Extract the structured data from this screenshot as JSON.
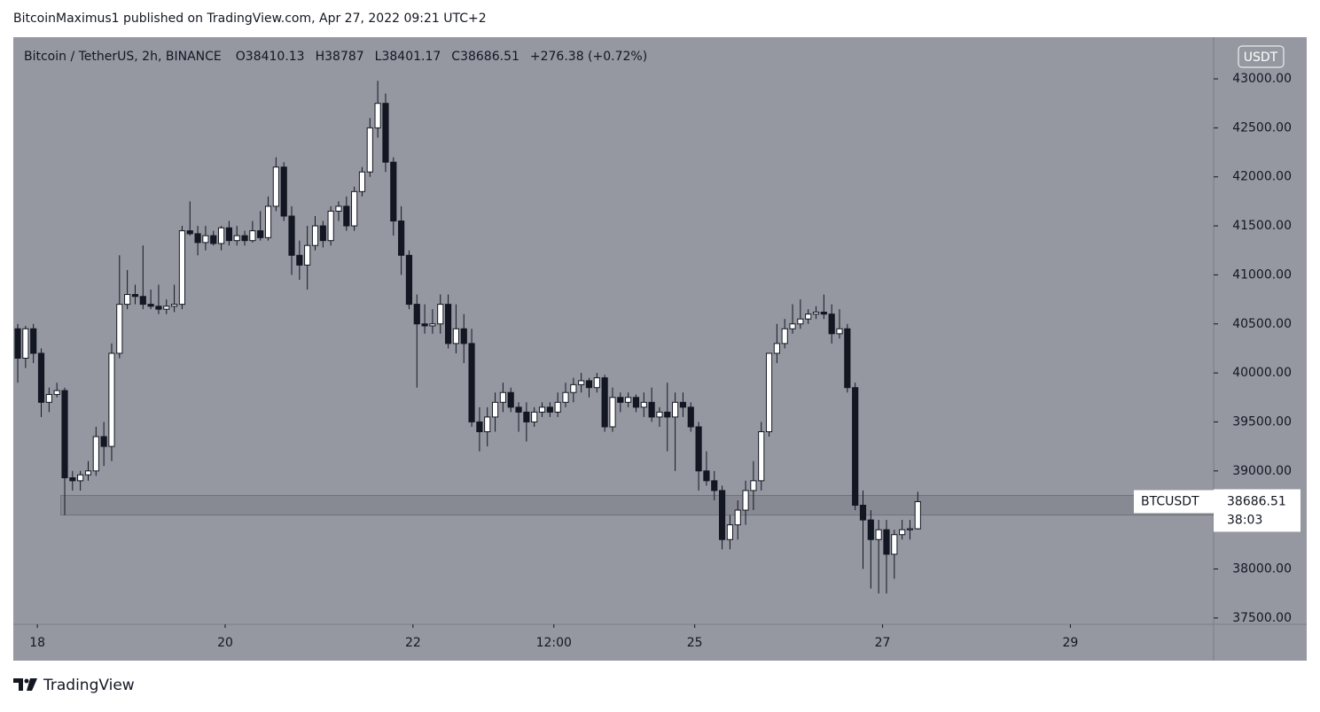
{
  "header": {
    "text": "BitcoinMaximus1 published on TradingView.com, Apr 27, 2022 09:21 UTC+2"
  },
  "footer": {
    "brand": "TradingView"
  },
  "chart_data": {
    "type": "candlestick",
    "title": "Bitcoin / TetherUS, 2h, BINANCE",
    "ohlc_labels": [
      "O",
      "H",
      "L",
      "C"
    ],
    "change_label": "+276.38 (+0.72%)",
    "currency": "USDT",
    "symbol": "BTCUSDT",
    "countdown": "38:03",
    "last_price_label": "38686.51",
    "bull_color": "#ffffff",
    "bear_color": "#131722",
    "background": "#9598a1",
    "zone": {
      "from": 38550,
      "to": 38750,
      "x_from": 5.5,
      "color": "#7d8089"
    },
    "xlim": [
      -0.57,
      152.8
    ],
    "xticks": [
      {
        "value": 2.5,
        "label": "18"
      },
      {
        "value": 26.5,
        "label": "20"
      },
      {
        "value": 50.5,
        "label": "22"
      },
      {
        "value": 68.5,
        "label": "12:00"
      },
      {
        "value": 86.5,
        "label": "25"
      },
      {
        "value": 110.5,
        "label": "27"
      },
      {
        "value": 134.5,
        "label": "29"
      }
    ],
    "ylim": [
      37435,
      43425
    ],
    "yticks": [
      {
        "value": 37500,
        "label": "37500.00"
      },
      {
        "value": 38000,
        "label": "38000.00"
      },
      {
        "value": 38500,
        "label": "38500.00"
      },
      {
        "value": 39000,
        "label": "39000.00"
      },
      {
        "value": 39500,
        "label": "39500.00"
      },
      {
        "value": 40000,
        "label": "40000.00"
      },
      {
        "value": 40500,
        "label": "40500.00"
      },
      {
        "value": 41000,
        "label": "41000.00"
      },
      {
        "value": 41500,
        "label": "41500.00"
      },
      {
        "value": 42000,
        "label": "42000.00"
      },
      {
        "value": 42500,
        "label": "42500.00"
      },
      {
        "value": 43000,
        "label": "43000.00"
      }
    ],
    "ohlc": [
      [
        40450,
        40500,
        39900,
        40150
      ],
      [
        40150,
        40480,
        40050,
        40450
      ],
      [
        40450,
        40500,
        40100,
        40200
      ],
      [
        40200,
        40250,
        39550,
        39700
      ],
      [
        39700,
        39850,
        39600,
        39780
      ],
      [
        39780,
        39900,
        39750,
        39820
      ],
      [
        39820,
        39850,
        38550,
        38930
      ],
      [
        38930,
        39000,
        38800,
        38900
      ],
      [
        38900,
        39000,
        38800,
        38960
      ],
      [
        38960,
        39100,
        38900,
        39000
      ],
      [
        39000,
        39450,
        38950,
        39350
      ],
      [
        39350,
        39500,
        39050,
        39250
      ],
      [
        39250,
        40300,
        39100,
        40200
      ],
      [
        40200,
        41200,
        40150,
        40700
      ],
      [
        40700,
        41050,
        40650,
        40800
      ],
      [
        40800,
        40900,
        40700,
        40780
      ],
      [
        40780,
        41300,
        40650,
        40700
      ],
      [
        40700,
        40850,
        40650,
        40680
      ],
      [
        40680,
        40900,
        40600,
        40650
      ],
      [
        40650,
        40750,
        40600,
        40680
      ],
      [
        40680,
        40900,
        40620,
        40700
      ],
      [
        40700,
        41500,
        40650,
        41450
      ],
      [
        41450,
        41750,
        41400,
        41420
      ],
      [
        41420,
        41500,
        41200,
        41330
      ],
      [
        41330,
        41500,
        41250,
        41400
      ],
      [
        41400,
        41450,
        41300,
        41320
      ],
      [
        41320,
        41500,
        41250,
        41480
      ],
      [
        41480,
        41550,
        41300,
        41350
      ],
      [
        41350,
        41500,
        41300,
        41400
      ],
      [
        41400,
        41450,
        41300,
        41350
      ],
      [
        41350,
        41550,
        41330,
        41450
      ],
      [
        41450,
        41650,
        41350,
        41380
      ],
      [
        41380,
        41800,
        41350,
        41700
      ],
      [
        41700,
        42200,
        41650,
        42100
      ],
      [
        42100,
        42150,
        41550,
        41600
      ],
      [
        41600,
        41700,
        41000,
        41200
      ],
      [
        41200,
        41350,
        40950,
        41100
      ],
      [
        41100,
        41500,
        40850,
        41300
      ],
      [
        41300,
        41600,
        41250,
        41500
      ],
      [
        41500,
        41550,
        41280,
        41350
      ],
      [
        41350,
        41700,
        41300,
        41650
      ],
      [
        41650,
        41750,
        41550,
        41700
      ],
      [
        41700,
        41800,
        41450,
        41500
      ],
      [
        41500,
        41900,
        41450,
        41850
      ],
      [
        41850,
        42100,
        41800,
        42050
      ],
      [
        42050,
        42600,
        42000,
        42500
      ],
      [
        42500,
        42980,
        42400,
        42750
      ],
      [
        42750,
        42850,
        42050,
        42150
      ],
      [
        42150,
        42200,
        41400,
        41550
      ],
      [
        41550,
        41700,
        41000,
        41200
      ],
      [
        41200,
        41250,
        40650,
        40700
      ],
      [
        40700,
        40800,
        39850,
        40500
      ],
      [
        40500,
        40700,
        40400,
        40480
      ],
      [
        40480,
        40650,
        40400,
        40500
      ],
      [
        40500,
        40800,
        40400,
        40700
      ],
      [
        40700,
        40800,
        40250,
        40300
      ],
      [
        40300,
        40700,
        40200,
        40450
      ],
      [
        40450,
        40600,
        40100,
        40300
      ],
      [
        40300,
        40450,
        39450,
        39500
      ],
      [
        39500,
        39650,
        39200,
        39400
      ],
      [
        39400,
        39650,
        39250,
        39550
      ],
      [
        39550,
        39800,
        39400,
        39700
      ],
      [
        39700,
        39900,
        39600,
        39800
      ],
      [
        39800,
        39850,
        39600,
        39650
      ],
      [
        39650,
        39700,
        39400,
        39600
      ],
      [
        39600,
        39700,
        39300,
        39500
      ],
      [
        39500,
        39650,
        39450,
        39600
      ],
      [
        39600,
        39700,
        39550,
        39650
      ],
      [
        39650,
        39700,
        39550,
        39600
      ],
      [
        39600,
        39800,
        39550,
        39700
      ],
      [
        39700,
        39900,
        39650,
        39800
      ],
      [
        39800,
        39950,
        39700,
        39880
      ],
      [
        39880,
        40000,
        39800,
        39920
      ],
      [
        39920,
        39950,
        39750,
        39850
      ],
      [
        39850,
        40000,
        39800,
        39950
      ],
      [
        39950,
        39980,
        39400,
        39450
      ],
      [
        39450,
        39850,
        39400,
        39750
      ],
      [
        39750,
        39800,
        39600,
        39700
      ],
      [
        39700,
        39800,
        39650,
        39750
      ],
      [
        39750,
        39780,
        39600,
        39650
      ],
      [
        39650,
        39800,
        39550,
        39700
      ],
      [
        39700,
        39850,
        39500,
        39550
      ],
      [
        39550,
        39650,
        39450,
        39600
      ],
      [
        39600,
        39900,
        39200,
        39550
      ],
      [
        39550,
        39800,
        39000,
        39700
      ],
      [
        39700,
        39800,
        39550,
        39650
      ],
      [
        39650,
        39700,
        39400,
        39450
      ],
      [
        39450,
        39500,
        38800,
        39000
      ],
      [
        39000,
        39200,
        38850,
        38900
      ],
      [
        38900,
        39000,
        38700,
        38800
      ],
      [
        38800,
        38850,
        38200,
        38300
      ],
      [
        38300,
        38550,
        38200,
        38450
      ],
      [
        38450,
        38700,
        38300,
        38600
      ],
      [
        38600,
        38900,
        38450,
        38800
      ],
      [
        38800,
        39100,
        38600,
        38900
      ],
      [
        38900,
        39500,
        38800,
        39400
      ],
      [
        39400,
        40200,
        39350,
        40200
      ],
      [
        40200,
        40500,
        40100,
        40300
      ],
      [
        40300,
        40550,
        40250,
        40450
      ],
      [
        40450,
        40700,
        40400,
        40500
      ],
      [
        40500,
        40750,
        40450,
        40550
      ],
      [
        40550,
        40650,
        40500,
        40600
      ],
      [
        40600,
        40680,
        40550,
        40620
      ],
      [
        40620,
        40800,
        40550,
        40600
      ],
      [
        40600,
        40700,
        40300,
        40400
      ],
      [
        40400,
        40650,
        40350,
        40450
      ],
      [
        40450,
        40500,
        39800,
        39850
      ],
      [
        39850,
        39900,
        38600,
        38650
      ],
      [
        38650,
        38800,
        38000,
        38500
      ],
      [
        38500,
        38600,
        37800,
        38300
      ],
      [
        38300,
        38500,
        37750,
        38400
      ],
      [
        38400,
        38500,
        37750,
        38150
      ],
      [
        38150,
        38400,
        37900,
        38350
      ],
      [
        38350,
        38500,
        38300,
        38400
      ],
      [
        38400,
        38500,
        38300,
        38410
      ],
      [
        38410.13,
        38787.0,
        38401.17,
        38686.51
      ]
    ]
  }
}
